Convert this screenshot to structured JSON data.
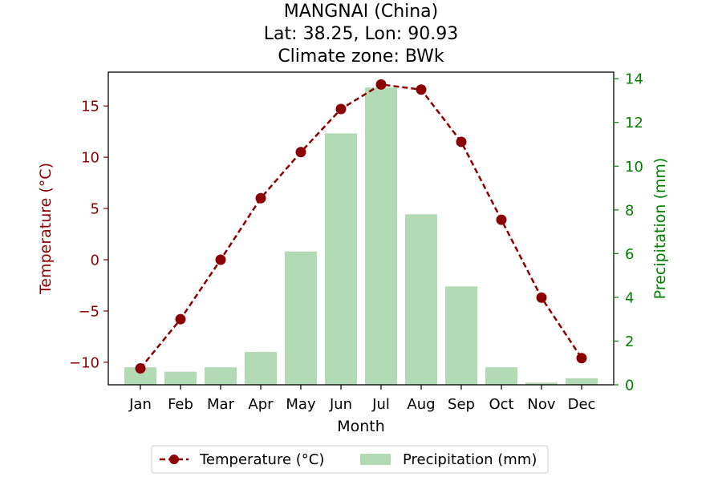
{
  "chart_data": {
    "type": "bar+line",
    "title_lines": [
      "MANGNAI (China)",
      "Lat: 38.25, Lon: 90.93",
      "Climate zone: BWk"
    ],
    "xlabel": "Month",
    "categories": [
      "Jan",
      "Feb",
      "Mar",
      "Apr",
      "May",
      "Jun",
      "Jul",
      "Aug",
      "Sep",
      "Oct",
      "Nov",
      "Dec"
    ],
    "temperature": {
      "name": "Temperature (°C)",
      "axis_label": "Temperature (°C)",
      "values": [
        -10.6,
        -5.8,
        0.0,
        6.0,
        10.5,
        14.7,
        17.1,
        16.6,
        11.5,
        3.9,
        -3.7,
        -9.6
      ],
      "ylim": [
        -12.2,
        18.3
      ],
      "ticks": [
        -10,
        -5,
        0,
        5,
        10,
        15
      ],
      "color": "#8b0000",
      "style": "dashed line with circle markers"
    },
    "precipitation": {
      "name": "Precipitation (mm)",
      "axis_label": "Precipitation (mm)",
      "values": [
        0.8,
        0.6,
        0.8,
        1.5,
        6.1,
        11.5,
        13.6,
        7.8,
        4.5,
        0.8,
        0.1,
        0.3
      ],
      "ylim": [
        0,
        14.3
      ],
      "ticks": [
        0,
        2,
        4,
        6,
        8,
        10,
        12,
        14
      ],
      "color": "#b2dab5",
      "axis_color": "#008000"
    },
    "legend": {
      "placement": "bottom-center",
      "entries": [
        "Temperature (°C)",
        "Precipitation (mm)"
      ]
    }
  }
}
